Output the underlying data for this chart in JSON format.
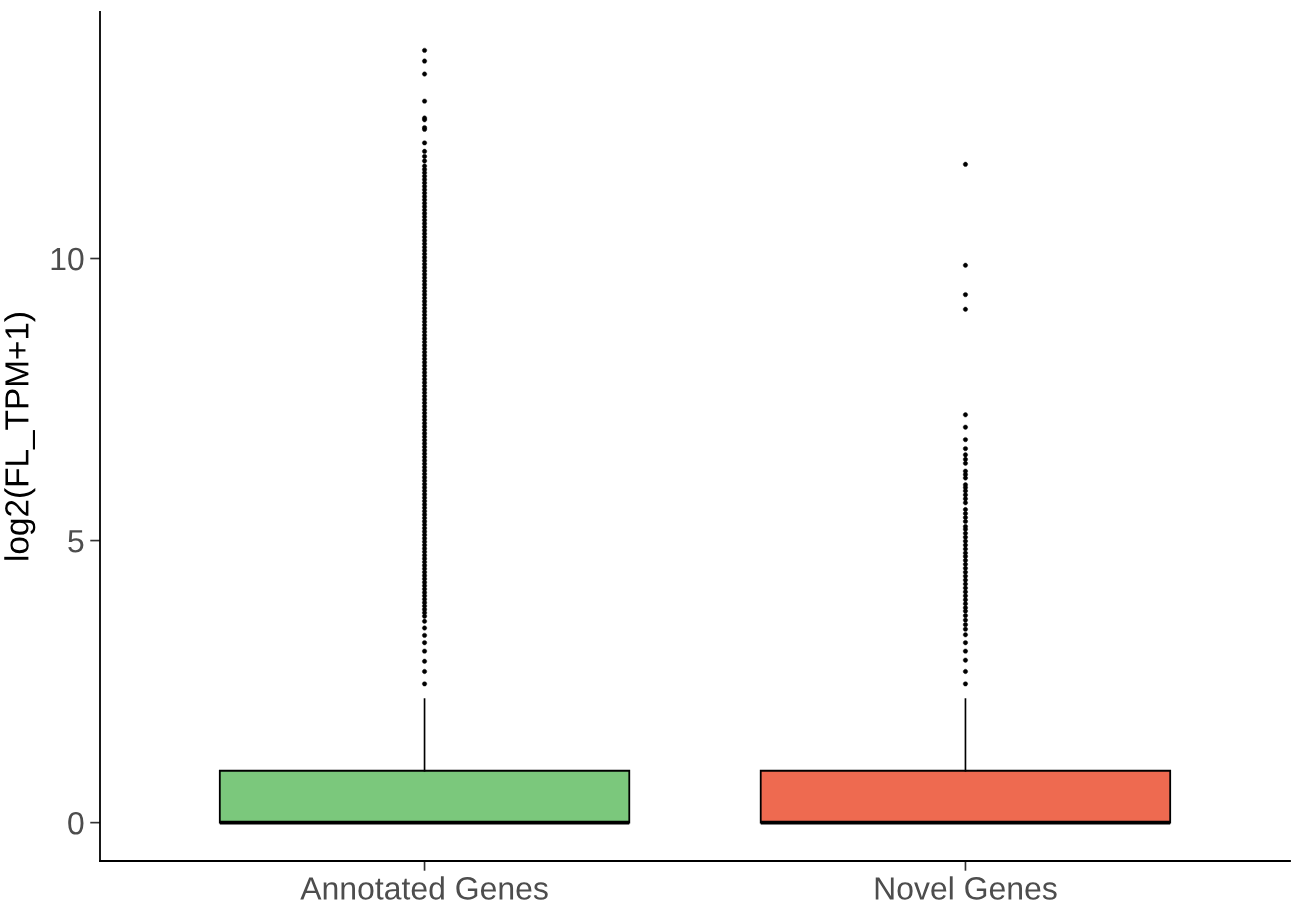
{
  "chart_data": {
    "type": "box",
    "ylabel": "log2(FL_TPM+1)",
    "categories": [
      "Annotated Genes",
      "Novel Genes"
    ],
    "colors": [
      "#7bc87c",
      "#ee6a50"
    ],
    "marker": "circle",
    "ylim": [
      -0.68,
      14.37
    ],
    "yticks": [
      0,
      5,
      10
    ],
    "boxes": [
      {
        "low": 0,
        "q1": 0,
        "median": 0,
        "q3": 0.92,
        "high": 2.19,
        "outliers": [
          2.46,
          2.68,
          2.86,
          3.04,
          3.19,
          3.32,
          3.45,
          3.57,
          3.66,
          3.72,
          3.78,
          3.84,
          3.9,
          3.96,
          4.02,
          4.08,
          4.14,
          4.2,
          4.26,
          4.32,
          4.38,
          4.44,
          4.5,
          4.56,
          4.62,
          4.68,
          4.74,
          4.8,
          4.86,
          4.92,
          4.98,
          5.04,
          5.1,
          5.16,
          5.22,
          5.28,
          5.34,
          5.4,
          5.46,
          5.52,
          5.58,
          5.64,
          5.7,
          5.76,
          5.82,
          5.88,
          5.94,
          6.0,
          6.06,
          6.12,
          6.18,
          6.24,
          6.3,
          6.36,
          6.42,
          6.48,
          6.54,
          6.6,
          6.66,
          6.72,
          6.78,
          6.84,
          6.9,
          6.96,
          7.02,
          7.08,
          7.14,
          7.2,
          7.26,
          7.32,
          7.38,
          7.44,
          7.5,
          7.56,
          7.62,
          7.68,
          7.74,
          7.8,
          7.86,
          7.92,
          7.98,
          8.04,
          8.1,
          8.16,
          8.22,
          8.28,
          8.34,
          8.4,
          8.46,
          8.52,
          8.58,
          8.64,
          8.7,
          8.76,
          8.82,
          8.88,
          8.94,
          9.0,
          9.06,
          9.12,
          9.18,
          9.24,
          9.3,
          9.36,
          9.42,
          9.48,
          9.54,
          9.6,
          9.66,
          9.72,
          9.78,
          9.84,
          9.9,
          9.96,
          10.02,
          10.08,
          10.14,
          10.2,
          10.26,
          10.32,
          10.38,
          10.44,
          10.5,
          10.56,
          10.62,
          10.68,
          10.74,
          10.8,
          10.86,
          10.92,
          10.98,
          11.04,
          11.1,
          11.16,
          11.22,
          11.28,
          11.34,
          11.4,
          11.46,
          11.52,
          11.58,
          11.64,
          11.73,
          11.81,
          11.9,
          12.05,
          12.29,
          12.32,
          12.46,
          12.49,
          12.79,
          13.27,
          13.5,
          13.69
        ]
      },
      {
        "low": 0,
        "q1": 0,
        "median": 0,
        "q3": 0.92,
        "high": 2.19,
        "outliers": [
          2.46,
          2.68,
          2.88,
          3.04,
          3.19,
          3.33,
          3.43,
          3.51,
          3.59,
          3.67,
          3.75,
          3.81,
          3.88,
          3.95,
          4.02,
          4.09,
          4.16,
          4.23,
          4.3,
          4.37,
          4.44,
          4.51,
          4.58,
          4.65,
          4.72,
          4.78,
          4.85,
          4.92,
          4.99,
          5.06,
          5.13,
          5.2,
          5.25,
          5.34,
          5.41,
          5.48,
          5.55,
          5.67,
          5.74,
          5.81,
          5.88,
          5.94,
          5.99,
          6.11,
          6.17,
          6.23,
          6.37,
          6.44,
          6.52,
          6.63,
          6.79,
          7.01,
          7.23,
          9.1,
          9.36,
          9.88,
          11.67
        ]
      }
    ]
  }
}
